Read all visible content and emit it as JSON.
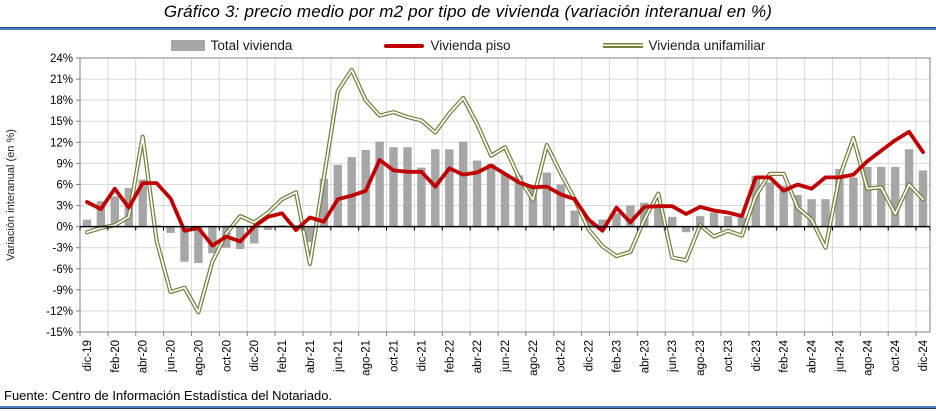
{
  "page": {
    "title": "Gráfico 3: precio medio por m2 por tipo de vivienda (variación interanual en %)",
    "source_note": "Fuente: Centro de Información Estadística del Notariado."
  },
  "chart_data": {
    "type": "combo_bar_line",
    "title": "Gráfico 3: precio medio por m2 por tipo de vivienda (variación interanual en %)",
    "y_axis_label": "Variación interanual (en %)",
    "ylim": [
      -15,
      24
    ],
    "y_step": 3,
    "y_ticks": [
      "24%",
      "21%",
      "18%",
      "15%",
      "12%",
      "9%",
      "6%",
      "3%",
      "0%",
      "-3%",
      "-6%",
      "-9%",
      "-12%",
      "-15%"
    ],
    "grid": true,
    "legend_position": "top",
    "x_tick_labels": [
      "dic-19",
      "feb-20",
      "abr-20",
      "jun-20",
      "ago-20",
      "oct-20",
      "dic-20",
      "feb-21",
      "abr-21",
      "jun-21",
      "ago-21",
      "oct-21",
      "dic-21",
      "feb-22",
      "abr-22",
      "jun-22",
      "ago-22",
      "oct-22",
      "dic-22",
      "feb-23",
      "abr-23",
      "jun-23",
      "ago-23",
      "oct-23",
      "dic-23",
      "feb-24",
      "abr-24",
      "jun-24",
      "ago-24",
      "oct-24",
      "dic-24"
    ],
    "months": [
      "dic-19",
      "ene-20",
      "feb-20",
      "mar-20",
      "abr-20",
      "may-20",
      "jun-20",
      "jul-20",
      "ago-20",
      "sep-20",
      "oct-20",
      "nov-20",
      "dic-20",
      "ene-21",
      "feb-21",
      "mar-21",
      "abr-21",
      "may-21",
      "jun-21",
      "jul-21",
      "ago-21",
      "sep-21",
      "oct-21",
      "nov-21",
      "dic-21",
      "ene-22",
      "feb-22",
      "mar-22",
      "abr-22",
      "may-22",
      "jun-22",
      "jul-22",
      "ago-22",
      "sep-22",
      "oct-22",
      "nov-22",
      "dic-22",
      "ene-23",
      "feb-23",
      "mar-23",
      "abr-23",
      "may-23",
      "jun-23",
      "jul-23",
      "ago-23",
      "sep-23",
      "oct-23",
      "nov-23",
      "dic-23",
      "ene-24",
      "feb-24",
      "mar-24",
      "abr-24",
      "may-24",
      "jun-24",
      "jul-24",
      "ago-24",
      "sep-24",
      "oct-24",
      "nov-24",
      "dic-24"
    ],
    "series": [
      {
        "name": "Total vivienda",
        "type": "bar",
        "color": "#a6a6a6",
        "values": [
          1.0,
          3.6,
          4.3,
          5.5,
          6.7,
          0.2,
          -0.9,
          -5.0,
          -5.2,
          -3.8,
          -3.0,
          -3.2,
          -2.4,
          -0.5,
          0.2,
          0.2,
          -2.2,
          6.8,
          8.8,
          9.9,
          10.9,
          12.1,
          11.3,
          11.3,
          8.4,
          11.0,
          11.0,
          12.1,
          9.4,
          8.9,
          7.6,
          7.3,
          5.6,
          7.7,
          6.0,
          2.3,
          0.7,
          1.0,
          1.9,
          3.0,
          3.4,
          3.0,
          1.4,
          -0.8,
          1.5,
          2.0,
          1.5,
          1.3,
          7.2,
          6.3,
          5.8,
          4.5,
          3.9,
          3.9,
          8.2,
          7.0,
          8.5,
          8.5,
          8.5,
          11.0,
          8.0
        ]
      },
      {
        "name": "Vivienda piso",
        "type": "line",
        "color": "#c00000",
        "values": [
          3.5,
          2.5,
          5.4,
          2.7,
          6.2,
          6.2,
          4.0,
          -0.6,
          -0.2,
          -2.7,
          -1.4,
          -2.1,
          0.0,
          1.4,
          1.9,
          -0.5,
          1.3,
          0.7,
          3.9,
          4.4,
          5.1,
          9.5,
          8.0,
          7.8,
          7.8,
          5.7,
          8.3,
          7.4,
          7.7,
          8.7,
          7.5,
          6.3,
          5.6,
          5.7,
          4.6,
          3.9,
          1.0,
          -0.6,
          2.7,
          0.6,
          2.8,
          2.9,
          2.9,
          1.8,
          2.8,
          2.3,
          2.0,
          1.5,
          7.0,
          7.0,
          5.1,
          6.0,
          5.4,
          7.0,
          7.0,
          7.4,
          9.3,
          10.8,
          12.3,
          13.5,
          10.6
        ]
      },
      {
        "name": "Vivienda unifamiliar",
        "type": "line",
        "color": "#76803d",
        "line_style": "double",
        "values": [
          -0.8,
          -0.2,
          0.2,
          1.4,
          12.8,
          -2.0,
          -9.3,
          -8.7,
          -12.2,
          -5.0,
          -1.0,
          1.5,
          0.6,
          2.0,
          3.9,
          4.9,
          -5.3,
          7.0,
          19.3,
          22.3,
          18.0,
          15.8,
          16.3,
          15.6,
          15.1,
          13.4,
          16.1,
          18.3,
          14.6,
          10.1,
          11.3,
          7.0,
          3.8,
          11.6,
          7.6,
          3.9,
          -0.4,
          -2.8,
          -4.2,
          -3.6,
          1.0,
          4.7,
          -4.4,
          -4.8,
          0.2,
          -1.4,
          -0.6,
          -1.3,
          4.4,
          7.5,
          7.5,
          2.7,
          1.0,
          -3.0,
          7.0,
          12.6,
          5.4,
          5.6,
          1.8,
          6.0,
          3.9
        ]
      }
    ],
    "colors": {
      "grid": "#d9d9d9",
      "frame": "#808080",
      "zero_axis": "#000000"
    }
  }
}
